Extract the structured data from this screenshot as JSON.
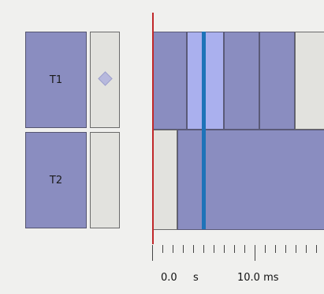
{
  "tasks": [
    {
      "label": "T1"
    },
    {
      "label": "T2"
    }
  ],
  "time_axis": {
    "labels": [
      {
        "value": "0.0",
        "unit": "s"
      },
      {
        "value": "10.0 ms",
        "unit": ""
      }
    ]
  },
  "colors": {
    "busy": "#8a8dc0",
    "selected": "#aab0ee",
    "idle": "#e2e2de",
    "cursor": "#1e73b8",
    "zero_line": "#c0282a"
  },
  "icons": {
    "t1_marker": "diamond-icon"
  }
}
